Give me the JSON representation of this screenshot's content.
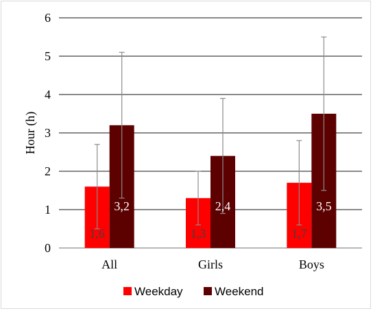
{
  "chart_data": {
    "type": "bar",
    "title": "",
    "xlabel": "",
    "ylabel": "Hour (h)",
    "ylim": [
      0,
      6
    ],
    "yticks": [
      "0",
      "1",
      "2",
      "3",
      "4",
      "5",
      "6"
    ],
    "grid": true,
    "legend_position": "bottom",
    "categories": [
      "All",
      "Girls",
      "Boys"
    ],
    "series": [
      {
        "name": "Weekday",
        "color": "#ff0000",
        "values": [
          1.6,
          1.3,
          1.7
        ],
        "labels": [
          "1,6",
          "1,3",
          "1,7"
        ],
        "error": [
          1.1,
          0.7,
          1.1
        ]
      },
      {
        "name": "Weekend",
        "color": "#5c0000",
        "values": [
          3.2,
          2.4,
          3.5
        ],
        "labels": [
          "3,2",
          "2,4",
          "3,5"
        ],
        "error": [
          1.9,
          1.5,
          2.0
        ]
      }
    ]
  }
}
